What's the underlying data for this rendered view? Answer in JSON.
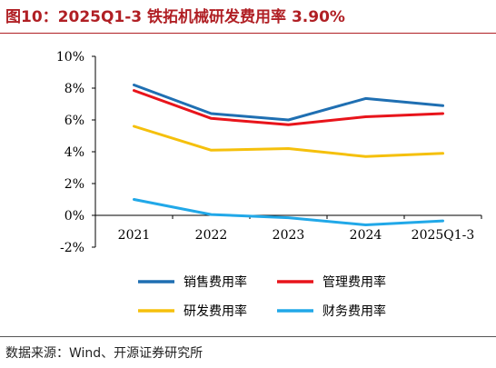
{
  "title": "图10：2025Q1-3 铁拓机械研发费用率 3.90%",
  "source": "数据来源：Wind、开源证券研究所",
  "chart_data": {
    "type": "line",
    "categories": [
      "2021",
      "2022",
      "2023",
      "2024",
      "2025Q1-3"
    ],
    "ylim": [
      -2,
      10
    ],
    "y_ticks": [
      "-2%",
      "0%",
      "2%",
      "4%",
      "6%",
      "8%",
      "10%"
    ],
    "y_tick_values": [
      -2,
      0,
      2,
      4,
      6,
      8,
      10
    ],
    "y_unit": "%",
    "grid": false,
    "legend_position": "bottom",
    "series": [
      {
        "name": "销售费用率",
        "color": "#1f6fb2",
        "values": [
          8.2,
          6.4,
          6.0,
          7.35,
          6.9
        ]
      },
      {
        "name": "管理费用率",
        "color": "#e8141b",
        "values": [
          7.85,
          6.1,
          5.7,
          6.2,
          6.4
        ]
      },
      {
        "name": "研发费用率",
        "color": "#f5c00c",
        "values": [
          5.6,
          4.1,
          4.2,
          3.7,
          3.9
        ]
      },
      {
        "name": "财务费用率",
        "color": "#21a8e8",
        "values": [
          1.0,
          0.05,
          -0.15,
          -0.6,
          -0.35
        ]
      }
    ]
  }
}
